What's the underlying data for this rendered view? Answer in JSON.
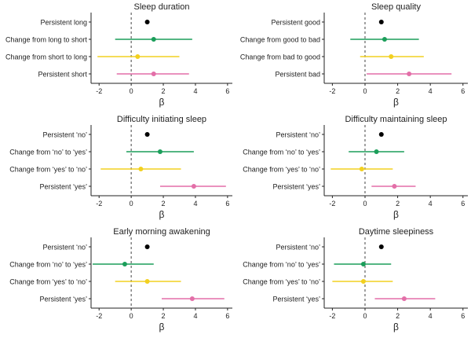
{
  "colors": {
    "ref": "#000000",
    "green": "#1b9e5a",
    "yellow": "#f2d020",
    "pink": "#e36fa8",
    "axis": "#222222",
    "text": "#222222"
  },
  "chart_data": [
    {
      "type": "forest",
      "title": "Sleep duration",
      "xlabel": "β",
      "xlim": [
        -2.5,
        6.3
      ],
      "xticks": [
        -2,
        0,
        2,
        4,
        6
      ],
      "reference_line": 0,
      "rows": [
        {
          "label": "Persistent long",
          "estimate": 1.0,
          "low": 1.0,
          "high": 1.0,
          "color": "ref"
        },
        {
          "label": "Change from long to short",
          "estimate": 1.4,
          "low": -1.0,
          "high": 3.8,
          "color": "green"
        },
        {
          "label": "Change from short to long",
          "estimate": 0.4,
          "low": -2.1,
          "high": 3.0,
          "color": "yellow"
        },
        {
          "label": "Persistent short",
          "estimate": 1.4,
          "low": -0.9,
          "high": 3.6,
          "color": "pink"
        }
      ]
    },
    {
      "type": "forest",
      "title": "Sleep quality",
      "xlabel": "β",
      "xlim": [
        -2.5,
        6.3
      ],
      "xticks": [
        -2,
        0,
        2,
        4,
        6
      ],
      "reference_line": 0,
      "rows": [
        {
          "label": "Persistent good",
          "estimate": 1.0,
          "low": 1.0,
          "high": 1.0,
          "color": "ref"
        },
        {
          "label": "Change from good to bad",
          "estimate": 1.2,
          "low": -0.9,
          "high": 3.3,
          "color": "green"
        },
        {
          "label": "Change from bad to good",
          "estimate": 1.6,
          "low": -0.3,
          "high": 3.6,
          "color": "yellow"
        },
        {
          "label": "Persistent bad",
          "estimate": 2.7,
          "low": 0.1,
          "high": 5.3,
          "color": "pink"
        }
      ]
    },
    {
      "type": "forest",
      "title": "Difficulty initiating sleep",
      "xlabel": "β",
      "xlim": [
        -2.5,
        6.3
      ],
      "xticks": [
        -2,
        0,
        2,
        4,
        6
      ],
      "reference_line": 0,
      "rows": [
        {
          "label": "Persistent ‘no’",
          "estimate": 1.0,
          "low": 1.0,
          "high": 1.0,
          "color": "ref"
        },
        {
          "label": "Change from ‘no’ to ‘yes’",
          "estimate": 1.8,
          "low": -0.3,
          "high": 3.9,
          "color": "green"
        },
        {
          "label": "Change from ‘yes’ to ‘no’",
          "estimate": 0.6,
          "low": -1.9,
          "high": 3.1,
          "color": "yellow"
        },
        {
          "label": "Persistent ‘yes’",
          "estimate": 3.9,
          "low": 1.8,
          "high": 5.9,
          "color": "pink"
        }
      ]
    },
    {
      "type": "forest",
      "title": "Difficulty maintaining sleep",
      "xlabel": "β",
      "xlim": [
        -2.5,
        6.3
      ],
      "xticks": [
        -2,
        0,
        2,
        4,
        6
      ],
      "reference_line": 0,
      "rows": [
        {
          "label": "Persistent ‘no’",
          "estimate": 1.0,
          "low": 1.0,
          "high": 1.0,
          "color": "ref"
        },
        {
          "label": "Change from ‘no’ to ‘yes’",
          "estimate": 0.7,
          "low": -1.0,
          "high": 2.4,
          "color": "green"
        },
        {
          "label": "Change from ‘yes’ to ‘no’",
          "estimate": -0.2,
          "low": -2.1,
          "high": 1.7,
          "color": "yellow"
        },
        {
          "label": "Persistent ‘yes’",
          "estimate": 1.8,
          "low": 0.4,
          "high": 3.1,
          "color": "pink"
        }
      ]
    },
    {
      "type": "forest",
      "title": "Early morning awakening",
      "xlabel": "β",
      "xlim": [
        -2.5,
        6.3
      ],
      "xticks": [
        -2,
        0,
        2,
        4,
        6
      ],
      "reference_line": 0,
      "rows": [
        {
          "label": "Persistent ‘no’",
          "estimate": 1.0,
          "low": 1.0,
          "high": 1.0,
          "color": "ref"
        },
        {
          "label": "Change from ‘no’ to ‘yes’",
          "estimate": -0.4,
          "low": -2.4,
          "high": 1.4,
          "color": "green"
        },
        {
          "label": "Change from ‘yes’ to ‘no’",
          "estimate": 1.0,
          "low": -1.0,
          "high": 3.1,
          "color": "yellow"
        },
        {
          "label": "Persistent ‘yes’",
          "estimate": 3.8,
          "low": 1.9,
          "high": 5.8,
          "color": "pink"
        }
      ]
    },
    {
      "type": "forest",
      "title": "Daytime sleepiness",
      "xlabel": "β",
      "xlim": [
        -2.5,
        6.3
      ],
      "xticks": [
        -2,
        0,
        2,
        4,
        6
      ],
      "reference_line": 0,
      "rows": [
        {
          "label": "Persistent ‘no’",
          "estimate": 1.0,
          "low": 1.0,
          "high": 1.0,
          "color": "ref"
        },
        {
          "label": "Change from ‘no’ to ‘yes’",
          "estimate": -0.1,
          "low": -1.9,
          "high": 1.6,
          "color": "green"
        },
        {
          "label": "Change from ‘yes’ to ‘no’",
          "estimate": -0.1,
          "low": -2.0,
          "high": 1.7,
          "color": "yellow"
        },
        {
          "label": "Persistent ‘yes’",
          "estimate": 2.4,
          "low": 0.6,
          "high": 4.3,
          "color": "pink"
        }
      ]
    }
  ]
}
